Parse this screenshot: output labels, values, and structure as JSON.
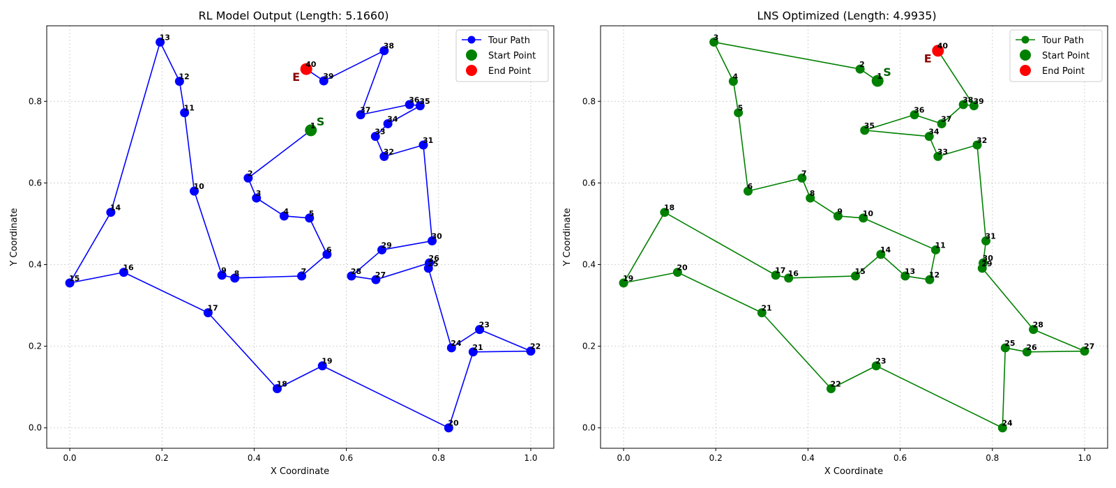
{
  "colors": {
    "start": "#008000",
    "end": "#ff0000",
    "start_text": "#006400",
    "end_text": "#8b0000"
  },
  "chart_data": [
    {
      "type": "line",
      "title": "RL Model Output (Length: 5.1660)",
      "xlabel": "X Coordinate",
      "ylabel": "Y Coordinate",
      "xlim": [
        -0.05,
        1.05
      ],
      "ylim": [
        -0.05,
        0.985
      ],
      "xticks": [
        0.0,
        0.2,
        0.4,
        0.6,
        0.8,
        1.0
      ],
      "xtick_labels": [
        "0.0",
        "0.2",
        "0.4",
        "0.6",
        "0.8",
        "1.0"
      ],
      "yticks": [
        0.0,
        0.2,
        0.4,
        0.6,
        0.8
      ],
      "ytick_labels": [
        "0.0",
        "0.2",
        "0.4",
        "0.6",
        "0.8"
      ],
      "grid": true,
      "line_color": "#0000ff",
      "legend_position": "top-right",
      "legend": [
        "Tour Path",
        "Start Point",
        "End Point"
      ],
      "start_marker_text": "S",
      "end_marker_text": "E",
      "points": [
        {
          "label": "1",
          "x": 0.523,
          "y": 0.729
        },
        {
          "label": "2",
          "x": 0.387,
          "y": 0.612
        },
        {
          "label": "3",
          "x": 0.405,
          "y": 0.563
        },
        {
          "label": "4",
          "x": 0.465,
          "y": 0.519
        },
        {
          "label": "5",
          "x": 0.52,
          "y": 0.514
        },
        {
          "label": "6",
          "x": 0.558,
          "y": 0.425
        },
        {
          "label": "7",
          "x": 0.503,
          "y": 0.372
        },
        {
          "label": "8",
          "x": 0.358,
          "y": 0.367
        },
        {
          "label": "9",
          "x": 0.33,
          "y": 0.374
        },
        {
          "label": "10",
          "x": 0.27,
          "y": 0.58
        },
        {
          "label": "11",
          "x": 0.249,
          "y": 0.772
        },
        {
          "label": "12",
          "x": 0.238,
          "y": 0.849
        },
        {
          "label": "13",
          "x": 0.196,
          "y": 0.945
        },
        {
          "label": "14",
          "x": 0.089,
          "y": 0.528
        },
        {
          "label": "15",
          "x": 0.0,
          "y": 0.355
        },
        {
          "label": "16",
          "x": 0.117,
          "y": 0.381
        },
        {
          "label": "17",
          "x": 0.3,
          "y": 0.282
        },
        {
          "label": "18",
          "x": 0.45,
          "y": 0.096
        },
        {
          "label": "19",
          "x": 0.548,
          "y": 0.152
        },
        {
          "label": "20",
          "x": 0.822,
          "y": 0.0
        },
        {
          "label": "21",
          "x": 0.875,
          "y": 0.186
        },
        {
          "label": "22",
          "x": 1.0,
          "y": 0.188
        },
        {
          "label": "23",
          "x": 0.889,
          "y": 0.241
        },
        {
          "label": "24",
          "x": 0.828,
          "y": 0.196
        },
        {
          "label": "25",
          "x": 0.778,
          "y": 0.391
        },
        {
          "label": "26",
          "x": 0.78,
          "y": 0.404
        },
        {
          "label": "27",
          "x": 0.664,
          "y": 0.363
        },
        {
          "label": "28",
          "x": 0.611,
          "y": 0.372
        },
        {
          "label": "29",
          "x": 0.677,
          "y": 0.436
        },
        {
          "label": "30",
          "x": 0.786,
          "y": 0.458
        },
        {
          "label": "31",
          "x": 0.767,
          "y": 0.693
        },
        {
          "label": "32",
          "x": 0.682,
          "y": 0.665
        },
        {
          "label": "33",
          "x": 0.663,
          "y": 0.714
        },
        {
          "label": "34",
          "x": 0.69,
          "y": 0.745
        },
        {
          "label": "35",
          "x": 0.76,
          "y": 0.789
        },
        {
          "label": "36",
          "x": 0.737,
          "y": 0.792
        },
        {
          "label": "37",
          "x": 0.631,
          "y": 0.767
        },
        {
          "label": "38",
          "x": 0.682,
          "y": 0.924
        },
        {
          "label": "39",
          "x": 0.551,
          "y": 0.85
        },
        {
          "label": "40",
          "x": 0.513,
          "y": 0.879
        }
      ]
    },
    {
      "type": "line",
      "title": "LNS Optimized (Length: 4.9935)",
      "xlabel": "X Coordinate",
      "ylabel": "Y Coordinate",
      "xlim": [
        -0.05,
        1.05
      ],
      "ylim": [
        -0.05,
        0.985
      ],
      "xticks": [
        0.0,
        0.2,
        0.4,
        0.6,
        0.8,
        1.0
      ],
      "xtick_labels": [
        "0.0",
        "0.2",
        "0.4",
        "0.6",
        "0.8",
        "1.0"
      ],
      "yticks": [
        0.0,
        0.2,
        0.4,
        0.6,
        0.8
      ],
      "ytick_labels": [
        "0.0",
        "0.2",
        "0.4",
        "0.6",
        "0.8"
      ],
      "grid": true,
      "line_color": "#008000",
      "legend_position": "top-right",
      "legend": [
        "Tour Path",
        "Start Point",
        "End Point"
      ],
      "start_marker_text": "S",
      "end_marker_text": "E",
      "points": [
        {
          "label": "1",
          "x": 0.551,
          "y": 0.85
        },
        {
          "label": "2",
          "x": 0.513,
          "y": 0.879
        },
        {
          "label": "3",
          "x": 0.196,
          "y": 0.945
        },
        {
          "label": "4",
          "x": 0.238,
          "y": 0.849
        },
        {
          "label": "5",
          "x": 0.249,
          "y": 0.772
        },
        {
          "label": "6",
          "x": 0.27,
          "y": 0.58
        },
        {
          "label": "7",
          "x": 0.387,
          "y": 0.612
        },
        {
          "label": "8",
          "x": 0.405,
          "y": 0.563
        },
        {
          "label": "9",
          "x": 0.465,
          "y": 0.519
        },
        {
          "label": "10",
          "x": 0.52,
          "y": 0.514
        },
        {
          "label": "11",
          "x": 0.677,
          "y": 0.436
        },
        {
          "label": "12",
          "x": 0.664,
          "y": 0.363
        },
        {
          "label": "13",
          "x": 0.611,
          "y": 0.372
        },
        {
          "label": "14",
          "x": 0.558,
          "y": 0.425
        },
        {
          "label": "15",
          "x": 0.503,
          "y": 0.372
        },
        {
          "label": "16",
          "x": 0.358,
          "y": 0.367
        },
        {
          "label": "17",
          "x": 0.33,
          "y": 0.374
        },
        {
          "label": "18",
          "x": 0.089,
          "y": 0.528
        },
        {
          "label": "19",
          "x": 0.0,
          "y": 0.355
        },
        {
          "label": "20",
          "x": 0.117,
          "y": 0.381
        },
        {
          "label": "21",
          "x": 0.3,
          "y": 0.282
        },
        {
          "label": "22",
          "x": 0.45,
          "y": 0.096
        },
        {
          "label": "23",
          "x": 0.548,
          "y": 0.152
        },
        {
          "label": "24",
          "x": 0.822,
          "y": 0.0
        },
        {
          "label": "25",
          "x": 0.828,
          "y": 0.196
        },
        {
          "label": "26",
          "x": 0.875,
          "y": 0.186
        },
        {
          "label": "27",
          "x": 1.0,
          "y": 0.188
        },
        {
          "label": "28",
          "x": 0.889,
          "y": 0.241
        },
        {
          "label": "29",
          "x": 0.778,
          "y": 0.391
        },
        {
          "label": "30",
          "x": 0.78,
          "y": 0.404
        },
        {
          "label": "31",
          "x": 0.786,
          "y": 0.458
        },
        {
          "label": "32",
          "x": 0.767,
          "y": 0.693
        },
        {
          "label": "33",
          "x": 0.682,
          "y": 0.665
        },
        {
          "label": "34",
          "x": 0.663,
          "y": 0.714
        },
        {
          "label": "35",
          "x": 0.523,
          "y": 0.729
        },
        {
          "label": "36",
          "x": 0.631,
          "y": 0.767
        },
        {
          "label": "37",
          "x": 0.69,
          "y": 0.745
        },
        {
          "label": "38",
          "x": 0.737,
          "y": 0.792
        },
        {
          "label": "39",
          "x": 0.76,
          "y": 0.789
        },
        {
          "label": "40",
          "x": 0.682,
          "y": 0.924
        }
      ]
    }
  ]
}
